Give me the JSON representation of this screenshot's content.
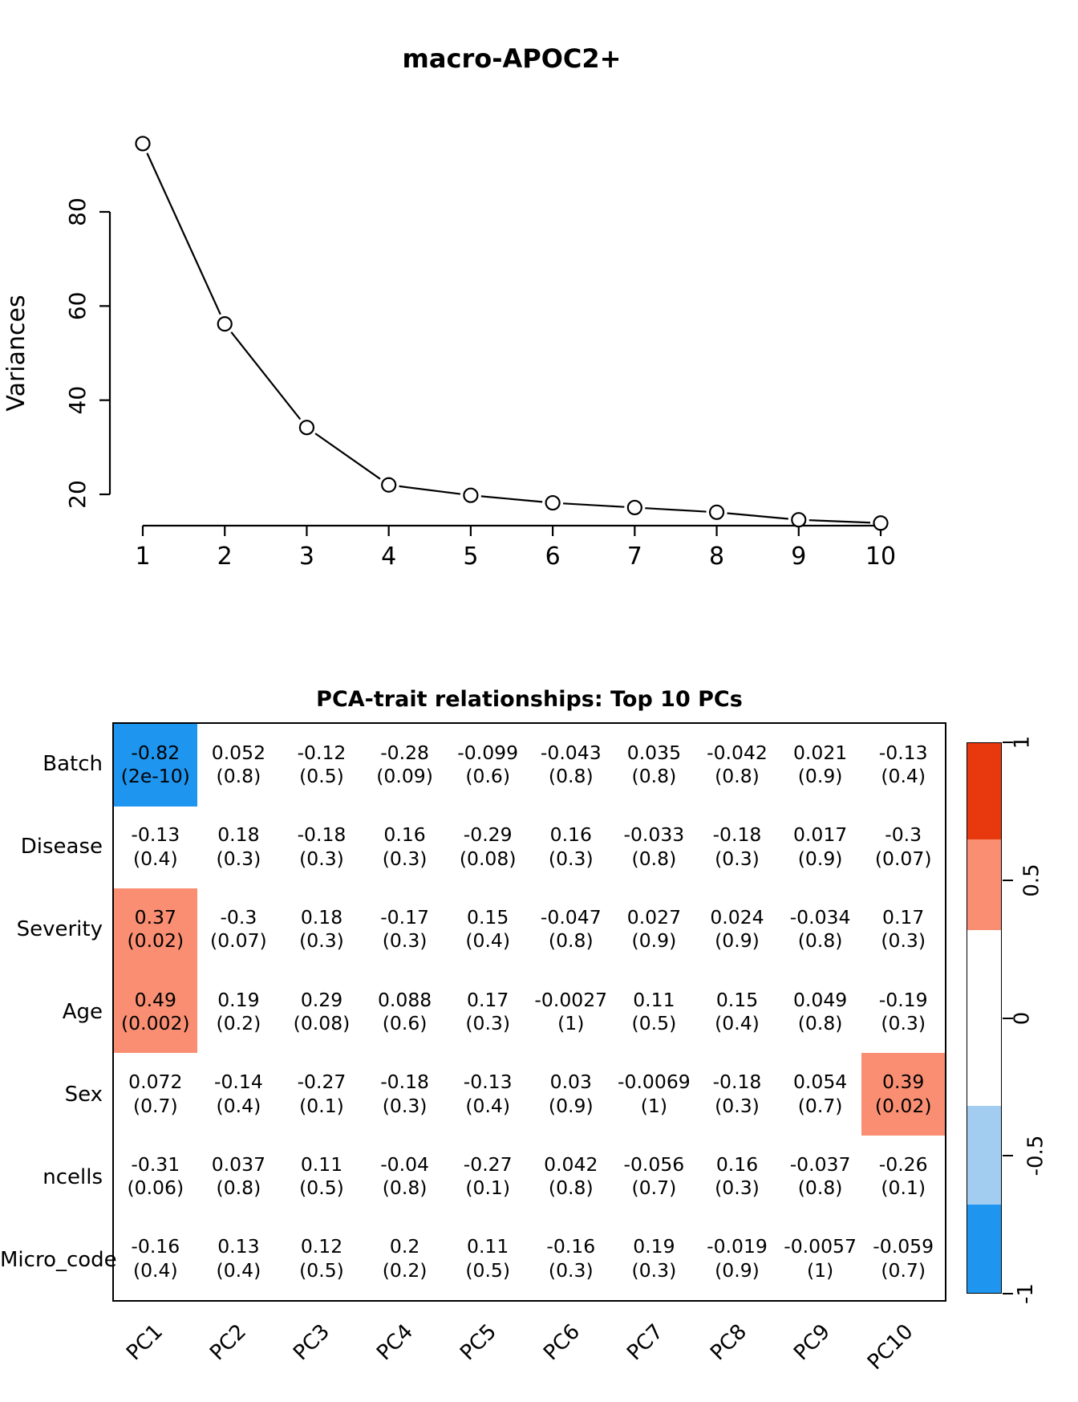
{
  "chart_data": [
    {
      "type": "line",
      "title": "macro-APOC2+",
      "xlabel": "",
      "ylabel": "Variances",
      "x": [
        1,
        2,
        3,
        4,
        5,
        6,
        7,
        8,
        9,
        10
      ],
      "values": [
        94.5,
        56.2,
        34.2,
        22.0,
        19.8,
        18.2,
        17.2,
        16.2,
        14.6,
        13.9
      ],
      "xticks": [
        "1",
        "2",
        "3",
        "4",
        "5",
        "6",
        "7",
        "8",
        "9",
        "10"
      ],
      "yticks": [
        20,
        40,
        60,
        80
      ],
      "ylim": [
        13,
        96
      ],
      "marker": "open-circle",
      "grid": false,
      "legend": "none"
    },
    {
      "type": "heatmap",
      "title": "PCA-trait relationships: Top 10 PCs",
      "columns": [
        "PC1",
        "PC2",
        "PC3",
        "PC4",
        "PC5",
        "PC6",
        "PC7",
        "PC8",
        "PC9",
        "PC10"
      ],
      "rows": [
        "Batch",
        "Disease",
        "Severity",
        "Age",
        "Sex",
        "ncells",
        "Micro_code"
      ],
      "palette": {
        "blue": "#1e96f0",
        "salmon": "#f98e72",
        "white": "#ffffff",
        "lightblue": "#a2cdf1",
        "red": "#e8390e"
      },
      "cells": [
        [
          {
            "v": "-0.82",
            "p": "(2e-10)",
            "bg": "blue"
          },
          {
            "v": "0.052",
            "p": "(0.8)"
          },
          {
            "v": "-0.12",
            "p": "(0.5)"
          },
          {
            "v": "-0.28",
            "p": "(0.09)"
          },
          {
            "v": "-0.099",
            "p": "(0.6)"
          },
          {
            "v": "-0.043",
            "p": "(0.8)"
          },
          {
            "v": "0.035",
            "p": "(0.8)"
          },
          {
            "v": "-0.042",
            "p": "(0.8)"
          },
          {
            "v": "0.021",
            "p": "(0.9)"
          },
          {
            "v": "-0.13",
            "p": "(0.4)"
          }
        ],
        [
          {
            "v": "-0.13",
            "p": "(0.4)"
          },
          {
            "v": "0.18",
            "p": "(0.3)"
          },
          {
            "v": "-0.18",
            "p": "(0.3)"
          },
          {
            "v": "0.16",
            "p": "(0.3)"
          },
          {
            "v": "-0.29",
            "p": "(0.08)"
          },
          {
            "v": "0.16",
            "p": "(0.3)"
          },
          {
            "v": "-0.033",
            "p": "(0.8)"
          },
          {
            "v": "-0.18",
            "p": "(0.3)"
          },
          {
            "v": "0.017",
            "p": "(0.9)"
          },
          {
            "v": "-0.3",
            "p": "(0.07)"
          }
        ],
        [
          {
            "v": "0.37",
            "p": "(0.02)",
            "bg": "salmon"
          },
          {
            "v": "-0.3",
            "p": "(0.07)"
          },
          {
            "v": "0.18",
            "p": "(0.3)"
          },
          {
            "v": "-0.17",
            "p": "(0.3)"
          },
          {
            "v": "0.15",
            "p": "(0.4)"
          },
          {
            "v": "-0.047",
            "p": "(0.8)"
          },
          {
            "v": "0.027",
            "p": "(0.9)"
          },
          {
            "v": "0.024",
            "p": "(0.9)"
          },
          {
            "v": "-0.034",
            "p": "(0.8)"
          },
          {
            "v": "0.17",
            "p": "(0.3)"
          }
        ],
        [
          {
            "v": "0.49",
            "p": "(0.002)",
            "bg": "salmon"
          },
          {
            "v": "0.19",
            "p": "(0.2)"
          },
          {
            "v": "0.29",
            "p": "(0.08)"
          },
          {
            "v": "0.088",
            "p": "(0.6)"
          },
          {
            "v": "0.17",
            "p": "(0.3)"
          },
          {
            "v": "-0.0027",
            "p": "(1)"
          },
          {
            "v": "0.11",
            "p": "(0.5)"
          },
          {
            "v": "0.15",
            "p": "(0.4)"
          },
          {
            "v": "0.049",
            "p": "(0.8)"
          },
          {
            "v": "-0.19",
            "p": "(0.3)"
          }
        ],
        [
          {
            "v": "0.072",
            "p": "(0.7)"
          },
          {
            "v": "-0.14",
            "p": "(0.4)"
          },
          {
            "v": "-0.27",
            "p": "(0.1)"
          },
          {
            "v": "-0.18",
            "p": "(0.3)"
          },
          {
            "v": "-0.13",
            "p": "(0.4)"
          },
          {
            "v": "0.03",
            "p": "(0.9)"
          },
          {
            "v": "-0.0069",
            "p": "(1)"
          },
          {
            "v": "-0.18",
            "p": "(0.3)"
          },
          {
            "v": "0.054",
            "p": "(0.7)"
          },
          {
            "v": "0.39",
            "p": "(0.02)",
            "bg": "salmon"
          }
        ],
        [
          {
            "v": "-0.31",
            "p": "(0.06)"
          },
          {
            "v": "0.037",
            "p": "(0.8)"
          },
          {
            "v": "0.11",
            "p": "(0.5)"
          },
          {
            "v": "-0.04",
            "p": "(0.8)"
          },
          {
            "v": "-0.27",
            "p": "(0.1)"
          },
          {
            "v": "0.042",
            "p": "(0.8)"
          },
          {
            "v": "-0.056",
            "p": "(0.7)"
          },
          {
            "v": "0.16",
            "p": "(0.3)"
          },
          {
            "v": "-0.037",
            "p": "(0.8)"
          },
          {
            "v": "-0.26",
            "p": "(0.1)"
          }
        ],
        [
          {
            "v": "-0.16",
            "p": "(0.4)"
          },
          {
            "v": "0.13",
            "p": "(0.4)"
          },
          {
            "v": "0.12",
            "p": "(0.5)"
          },
          {
            "v": "0.2",
            "p": "(0.2)"
          },
          {
            "v": "0.11",
            "p": "(0.5)"
          },
          {
            "v": "-0.16",
            "p": "(0.3)"
          },
          {
            "v": "0.19",
            "p": "(0.3)"
          },
          {
            "v": "-0.019",
            "p": "(0.9)"
          },
          {
            "v": "-0.0057",
            "p": "(1)"
          },
          {
            "v": "-0.059",
            "p": "(0.7)"
          }
        ]
      ],
      "colorbar": {
        "range": [
          -1,
          1
        ],
        "ticks": [
          {
            "label": "1",
            "value": 1
          },
          {
            "label": "0.5",
            "value": 0.5
          },
          {
            "label": "0",
            "value": 0
          },
          {
            "label": "-0.5",
            "value": -0.5
          },
          {
            "label": "-1",
            "value": -1
          }
        ],
        "segments": [
          {
            "color": "#e8390e",
            "from": 1.0,
            "to": 0.65
          },
          {
            "color": "#f98e72",
            "from": 0.65,
            "to": 0.32
          },
          {
            "color": "#ffffff",
            "from": 0.32,
            "to": -0.32
          },
          {
            "color": "#a2cdf1",
            "from": -0.32,
            "to": -0.68
          },
          {
            "color": "#1e96f0",
            "from": -0.68,
            "to": -1.0
          }
        ]
      }
    }
  ]
}
